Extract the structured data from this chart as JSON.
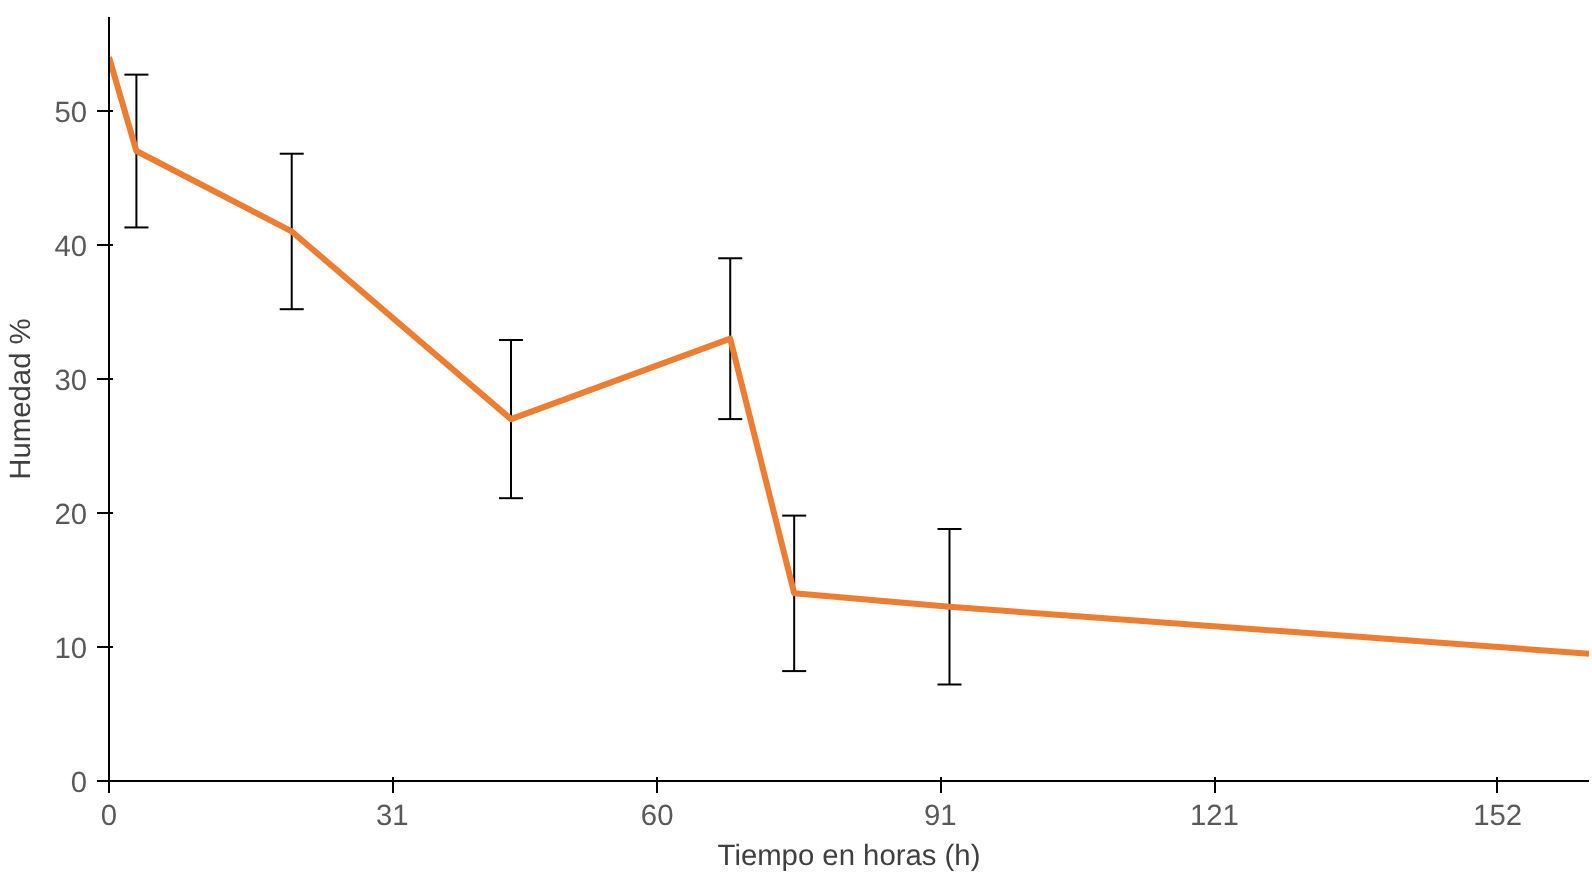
{
  "chart_data": {
    "type": "line",
    "xlabel": "Tiempo en horas (h)",
    "ylabel": "Humedad %",
    "x": [
      0,
      3,
      20,
      44,
      68,
      75,
      92,
      162
    ],
    "series": [
      {
        "color": "#ed7d31",
        "values": [
          54,
          47,
          41,
          27,
          33,
          14,
          13,
          9.5
        ],
        "errors": [
          null,
          5.7,
          5.8,
          5.9,
          6,
          5.8,
          5.8,
          null
        ]
      }
    ],
    "xlim": [
      0,
      162
    ],
    "xticks": [
      0,
      31,
      60,
      91,
      121,
      152
    ],
    "ylim": [
      0,
      57
    ],
    "yticks": [
      0,
      10,
      20,
      30,
      40,
      50
    ],
    "grid": false,
    "marker": "none",
    "line_style": "solid"
  }
}
